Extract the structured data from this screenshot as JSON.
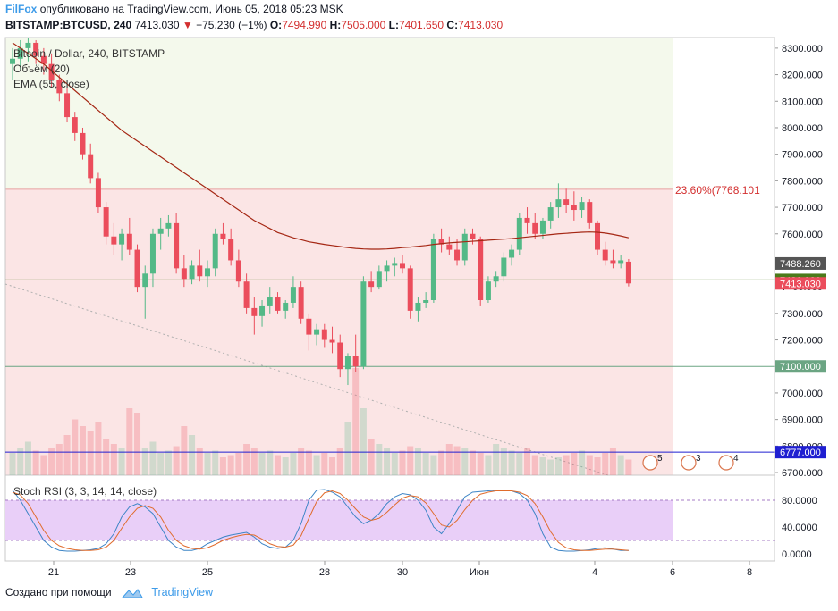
{
  "header": {
    "author": "FilFox",
    "published_text": "опубликовано на TradingView.com, Июнь 05, 2018 05:23 MSK",
    "symbol": "BITSTAMP:BTCUSD, 240",
    "last": "7413.030",
    "change_arrow": "▼",
    "change": "−75.230 (−1%)",
    "o_label": "O:",
    "o": "7494.990",
    "h_label": "H:",
    "h": "7505.000",
    "l_label": "L:",
    "l": "7401.650",
    "c_label": "C:",
    "c": "7413.030"
  },
  "legend": {
    "title": "Bitcoin / Dollar, 240, BITSTAMP",
    "volume": "Объём (20)",
    "ema": "EMA (55, close)"
  },
  "stoch_label": "Stoch RSI (3, 3, 14, 14, close)",
  "footer": {
    "made_with": "Создано при помощи",
    "brand": "TradingView"
  },
  "chart_data": {
    "type": "candlestick",
    "interval": "240",
    "y_axis": {
      "range": [
        6690,
        8340
      ],
      "ticks": [
        "8300.000",
        "8200.000",
        "8100.000",
        "8000.000",
        "7900.000",
        "7800.000",
        "7700.000",
        "7600.000",
        "7500.000",
        "7400.000",
        "7300.000",
        "7200.000",
        "7100.000",
        "7000.000",
        "6900.000",
        "6800.000",
        "6700.000"
      ]
    },
    "x_axis": {
      "ticks": [
        "21",
        "23",
        "25",
        "28",
        "30",
        "Июн",
        "4",
        "6",
        "8"
      ]
    },
    "colors": {
      "up": "#53b987",
      "down": "#eb4d5c",
      "ema": "#a52714",
      "fib_fill": "#fbe5e5",
      "upper_fill": "#f4f9ec",
      "stoch_fill": "#e9cff8"
    },
    "fib": {
      "label": "23.60%(7768.101",
      "level": 7768.101
    },
    "horizontal_levels": [
      {
        "value": 7100,
        "label": "7100.000",
        "color": "#6ba583"
      },
      {
        "value": 7426,
        "label": "7426.000",
        "color": "#4c7a1a"
      },
      {
        "value": 6777,
        "label": "6777.000",
        "color": "#1f1fd1"
      }
    ],
    "price_labels": [
      {
        "value": 7488.26,
        "label": "7488.260",
        "color": "#555555"
      },
      {
        "value": 7413.03,
        "label": "7413.030",
        "color": "#eb4d5c"
      }
    ],
    "candles": [
      [
        8240,
        8300,
        8180,
        8260
      ],
      [
        8260,
        8330,
        8220,
        8300
      ],
      [
        8300,
        8340,
        8250,
        8320
      ],
      [
        8320,
        8330,
        8240,
        8270
      ],
      [
        8270,
        8300,
        8200,
        8240
      ],
      [
        8240,
        8280,
        8150,
        8180
      ],
      [
        8180,
        8200,
        8100,
        8130
      ],
      [
        8130,
        8150,
        8020,
        8040
      ],
      [
        8040,
        8060,
        7950,
        7980
      ],
      [
        7980,
        8000,
        7880,
        7900
      ],
      [
        7900,
        7940,
        7790,
        7810
      ],
      [
        7810,
        7830,
        7680,
        7700
      ],
      [
        7700,
        7720,
        7560,
        7590
      ],
      [
        7590,
        7640,
        7520,
        7560
      ],
      [
        7560,
        7620,
        7500,
        7600
      ],
      [
        7600,
        7660,
        7520,
        7540
      ],
      [
        7540,
        7560,
        7380,
        7400
      ],
      [
        7400,
        7480,
        7280,
        7450
      ],
      [
        7450,
        7620,
        7400,
        7600
      ],
      [
        7600,
        7660,
        7540,
        7620
      ],
      [
        7620,
        7670,
        7590,
        7640
      ],
      [
        7640,
        7680,
        7450,
        7470
      ],
      [
        7470,
        7520,
        7400,
        7430
      ],
      [
        7430,
        7500,
        7410,
        7480
      ],
      [
        7480,
        7540,
        7420,
        7440
      ],
      [
        7440,
        7500,
        7400,
        7470
      ],
      [
        7470,
        7620,
        7440,
        7600
      ],
      [
        7600,
        7640,
        7560,
        7580
      ],
      [
        7580,
        7620,
        7480,
        7500
      ],
      [
        7500,
        7540,
        7400,
        7420
      ],
      [
        7420,
        7450,
        7300,
        7320
      ],
      [
        7320,
        7360,
        7220,
        7290
      ],
      [
        7290,
        7350,
        7250,
        7330
      ],
      [
        7330,
        7400,
        7300,
        7360
      ],
      [
        7360,
        7380,
        7300,
        7310
      ],
      [
        7310,
        7350,
        7280,
        7340
      ],
      [
        7340,
        7440,
        7320,
        7400
      ],
      [
        7400,
        7420,
        7260,
        7280
      ],
      [
        7280,
        7300,
        7160,
        7220
      ],
      [
        7220,
        7260,
        7180,
        7240
      ],
      [
        7240,
        7260,
        7170,
        7200
      ],
      [
        7200,
        7250,
        7150,
        7190
      ],
      [
        7190,
        7220,
        7060,
        7090
      ],
      [
        7090,
        7150,
        7030,
        7140
      ],
      [
        7140,
        7220,
        7080,
        7100
      ],
      [
        7100,
        7440,
        7090,
        7420
      ],
      [
        7420,
        7460,
        7380,
        7400
      ],
      [
        7400,
        7480,
        7390,
        7460
      ],
      [
        7460,
        7500,
        7420,
        7480
      ],
      [
        7480,
        7510,
        7440,
        7490
      ],
      [
        7490,
        7520,
        7450,
        7470
      ],
      [
        7470,
        7480,
        7280,
        7310
      ],
      [
        7310,
        7360,
        7270,
        7340
      ],
      [
        7340,
        7380,
        7320,
        7350
      ],
      [
        7350,
        7600,
        7340,
        7580
      ],
      [
        7580,
        7620,
        7530,
        7560
      ],
      [
        7560,
        7590,
        7520,
        7540
      ],
      [
        7540,
        7580,
        7480,
        7500
      ],
      [
        7500,
        7620,
        7480,
        7600
      ],
      [
        7600,
        7620,
        7560,
        7580
      ],
      [
        7580,
        7590,
        7330,
        7350
      ],
      [
        7350,
        7440,
        7340,
        7420
      ],
      [
        7420,
        7460,
        7400,
        7440
      ],
      [
        7440,
        7530,
        7420,
        7510
      ],
      [
        7510,
        7560,
        7480,
        7540
      ],
      [
        7540,
        7680,
        7520,
        7660
      ],
      [
        7660,
        7700,
        7600,
        7640
      ],
      [
        7640,
        7680,
        7580,
        7600
      ],
      [
        7600,
        7660,
        7580,
        7650
      ],
      [
        7650,
        7720,
        7620,
        7700
      ],
      [
        7700,
        7790,
        7660,
        7730
      ],
      [
        7730,
        7770,
        7680,
        7710
      ],
      [
        7710,
        7760,
        7650,
        7690
      ],
      [
        7690,
        7740,
        7660,
        7720
      ],
      [
        7720,
        7730,
        7620,
        7640
      ],
      [
        7640,
        7650,
        7520,
        7540
      ],
      [
        7540,
        7570,
        7480,
        7500
      ],
      [
        7500,
        7540,
        7470,
        7490
      ],
      [
        7490,
        7520,
        7470,
        7500
      ],
      [
        7495,
        7505,
        7401.65,
        7413.03
      ]
    ],
    "ema": [
      8320,
      8300,
      8280,
      8260,
      8240,
      8215,
      8190,
      8165,
      8140,
      8115,
      8090,
      8065,
      8040,
      8015,
      7990,
      7970,
      7950,
      7930,
      7910,
      7890,
      7870,
      7850,
      7830,
      7810,
      7790,
      7770,
      7750,
      7730,
      7710,
      7690,
      7670,
      7650,
      7635,
      7620,
      7605,
      7595,
      7585,
      7578,
      7570,
      7565,
      7560,
      7556,
      7552,
      7548,
      7545,
      7543,
      7542,
      7542,
      7543,
      7545,
      7548,
      7550,
      7553,
      7556,
      7560,
      7563,
      7566,
      7568,
      7570,
      7572,
      7574,
      7576,
      7578,
      7580,
      7582,
      7585,
      7588,
      7591,
      7594,
      7597,
      7600,
      7602,
      7604,
      7606,
      7607,
      7606,
      7603,
      7598,
      7592,
      7585
    ],
    "volume": [
      10,
      12,
      15,
      11,
      9,
      12,
      14,
      18,
      25,
      22,
      20,
      24,
      16,
      14,
      12,
      30,
      28,
      12,
      15,
      10,
      11,
      13,
      22,
      18,
      12,
      10,
      11,
      8,
      9,
      10,
      14,
      12,
      10,
      11,
      9,
      8,
      10,
      12,
      11,
      9,
      10,
      8,
      12,
      24,
      48,
      30,
      16,
      14,
      12,
      10,
      11,
      13,
      12,
      10,
      9,
      11,
      14,
      13,
      12,
      11,
      10,
      9,
      14,
      12,
      11,
      10,
      12,
      9,
      8,
      7,
      8,
      9,
      10,
      11,
      9,
      8,
      10,
      12,
      9,
      7
    ],
    "stoch": {
      "range": [
        0,
        100
      ],
      "ticks": [
        "80.0000",
        "40.0000",
        "0.0000"
      ],
      "k": [
        95,
        80,
        60,
        40,
        20,
        10,
        5,
        4,
        4,
        5,
        6,
        8,
        15,
        30,
        55,
        70,
        75,
        70,
        60,
        40,
        20,
        10,
        5,
        5,
        8,
        15,
        20,
        25,
        28,
        30,
        32,
        25,
        15,
        10,
        8,
        10,
        20,
        45,
        80,
        95,
        96,
        92,
        85,
        70,
        55,
        45,
        50,
        60,
        75,
        85,
        90,
        88,
        80,
        65,
        40,
        30,
        45,
        65,
        85,
        92,
        93,
        94,
        95,
        95,
        94,
        90,
        80,
        60,
        30,
        10,
        5,
        4,
        4,
        5,
        6,
        8,
        9,
        7,
        5,
        5
      ],
      "d": [
        92,
        88,
        75,
        55,
        35,
        20,
        12,
        8,
        6,
        5,
        5,
        6,
        10,
        20,
        38,
        55,
        68,
        72,
        68,
        55,
        35,
        20,
        12,
        8,
        7,
        9,
        14,
        20,
        24,
        27,
        29,
        28,
        22,
        15,
        11,
        10,
        13,
        27,
        53,
        78,
        91,
        94,
        90,
        80,
        67,
        55,
        50,
        53,
        62,
        73,
        83,
        87,
        85,
        76,
        60,
        43,
        40,
        50,
        66,
        80,
        89,
        92,
        94,
        94,
        94,
        92,
        87,
        75,
        55,
        33,
        17,
        9,
        6,
        5,
        5,
        6,
        7,
        7,
        6,
        5
      ]
    }
  }
}
